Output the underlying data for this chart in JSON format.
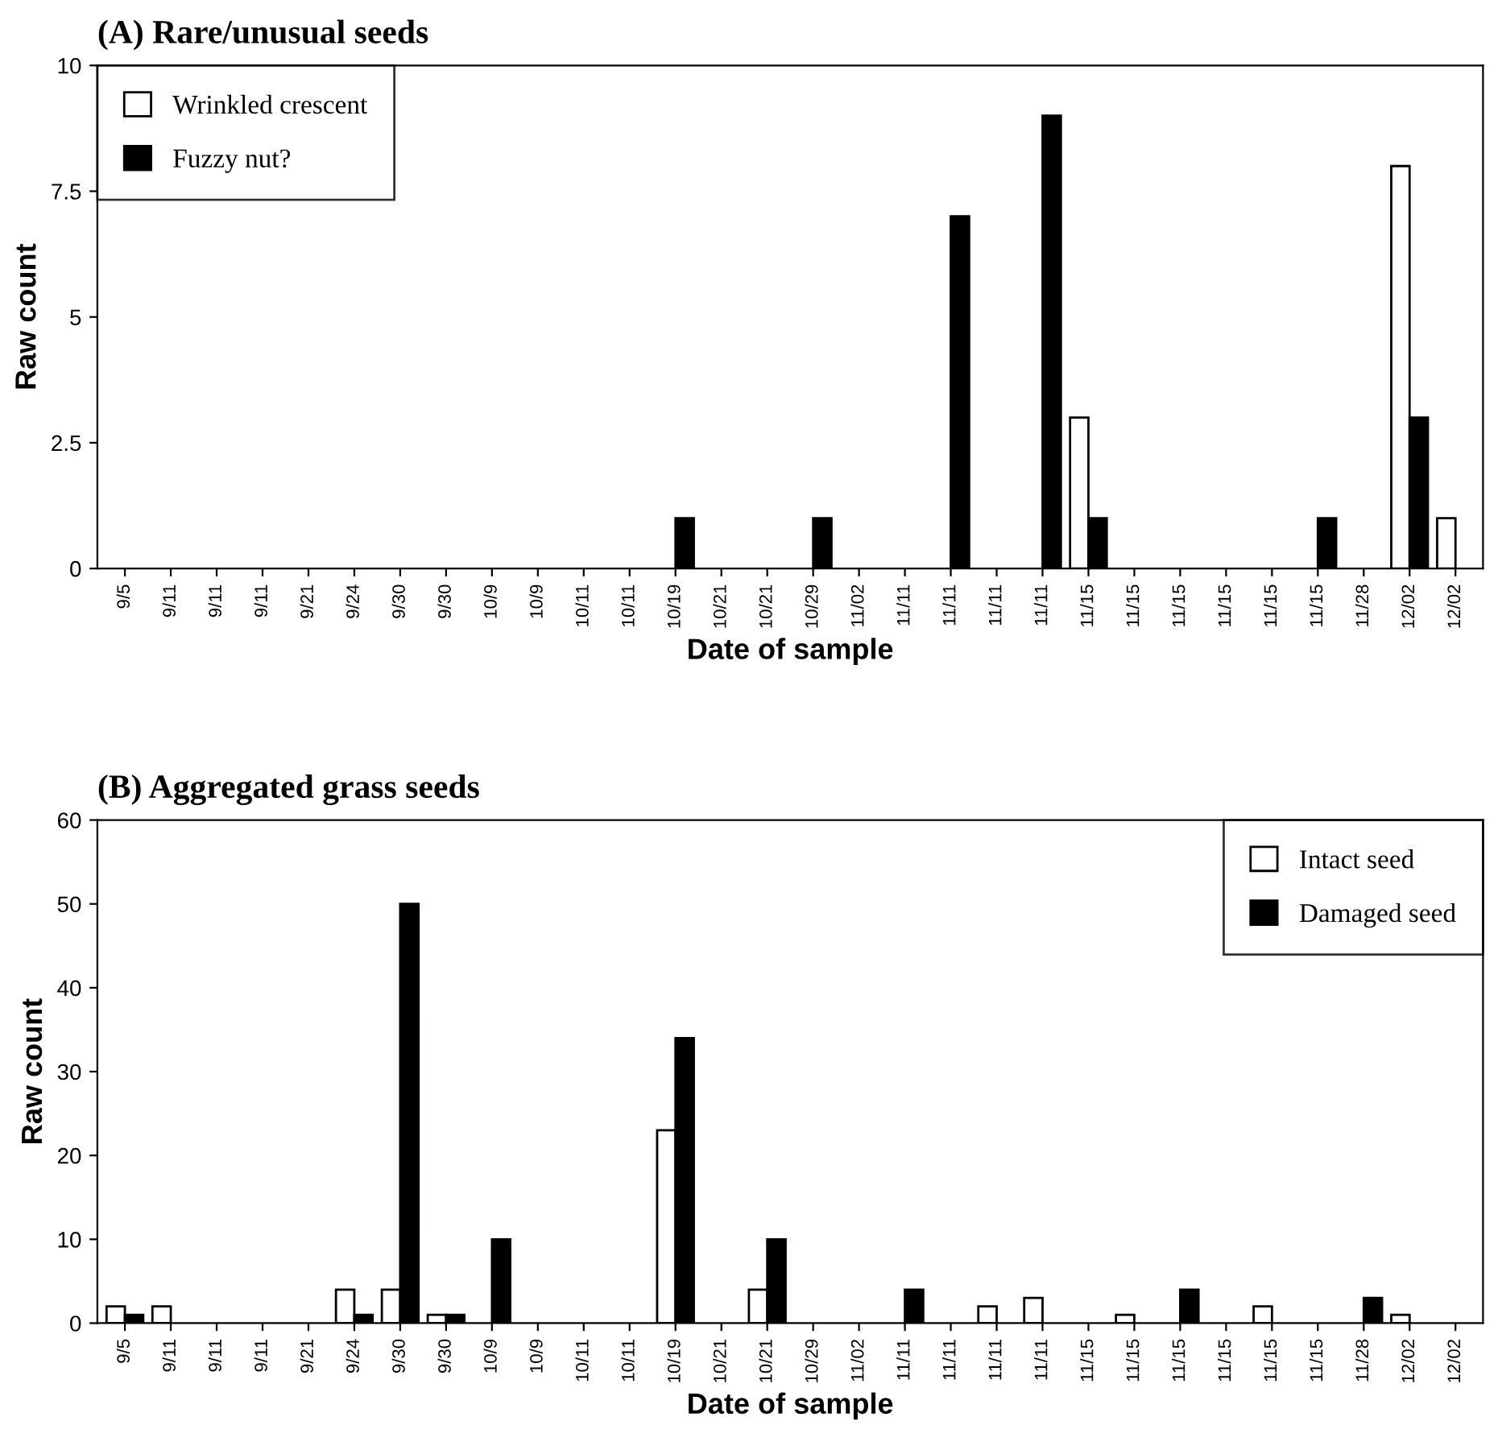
{
  "chart_data": [
    {
      "type": "bar",
      "title": "(A) Rare/unusual seeds",
      "xlabel": "Date of sample",
      "ylabel": "Raw count",
      "categories": [
        "9/5",
        "9/11",
        "9/11",
        "9/11",
        "9/21",
        "9/24",
        "9/30",
        "9/30",
        "10/9",
        "10/9",
        "10/11",
        "10/11",
        "10/19",
        "10/21",
        "10/21",
        "10/29",
        "11/02",
        "11/11",
        "11/11",
        "11/11",
        "11/11",
        "11/15",
        "11/15",
        "11/15",
        "11/15",
        "11/15",
        "11/15",
        "11/28",
        "12/02",
        "12/02"
      ],
      "series": [
        {
          "name": "Wrinkled crescent",
          "color": "#ffffff",
          "values": [
            null,
            null,
            null,
            null,
            null,
            null,
            null,
            null,
            null,
            null,
            null,
            null,
            null,
            null,
            null,
            null,
            null,
            null,
            null,
            null,
            null,
            3,
            null,
            null,
            null,
            null,
            null,
            null,
            8,
            1
          ]
        },
        {
          "name": "Fuzzy nut?",
          "color": "#000000",
          "values": [
            null,
            null,
            null,
            null,
            null,
            null,
            null,
            null,
            null,
            null,
            null,
            null,
            1,
            null,
            null,
            1,
            null,
            null,
            7,
            null,
            9,
            1,
            null,
            null,
            null,
            null,
            1,
            null,
            3,
            null
          ]
        }
      ],
      "ylim": [
        0,
        10
      ],
      "yticks": [
        0,
        2.5,
        5,
        7.5,
        10
      ],
      "grid": false,
      "legend": "top left"
    },
    {
      "type": "bar",
      "title": "(B) Aggregated grass seeds",
      "xlabel": "Date of sample",
      "ylabel": "Raw count",
      "categories": [
        "9/5",
        "9/11",
        "9/11",
        "9/11",
        "9/21",
        "9/24",
        "9/30",
        "9/30",
        "10/9",
        "10/9",
        "10/11",
        "10/11",
        "10/19",
        "10/21",
        "10/21",
        "10/29",
        "11/02",
        "11/11",
        "11/11",
        "11/11",
        "11/11",
        "11/15",
        "11/15",
        "11/15",
        "11/15",
        "11/15",
        "11/15",
        "11/28",
        "12/02",
        "12/02"
      ],
      "series": [
        {
          "name": "Intact seed",
          "color": "#ffffff",
          "values": [
            2,
            2,
            null,
            null,
            null,
            4,
            4,
            1,
            null,
            null,
            null,
            null,
            23,
            null,
            4,
            null,
            null,
            null,
            null,
            2,
            3,
            null,
            1,
            null,
            null,
            2,
            null,
            null,
            1,
            null
          ]
        },
        {
          "name": "Damaged seed",
          "color": "#000000",
          "values": [
            1,
            null,
            null,
            null,
            null,
            1,
            50,
            1,
            10,
            null,
            null,
            null,
            34,
            null,
            10,
            null,
            null,
            4,
            null,
            null,
            null,
            null,
            null,
            4,
            null,
            null,
            null,
            3,
            null,
            null
          ]
        }
      ],
      "ylim": [
        0,
        60
      ],
      "yticks": [
        0,
        10,
        20,
        30,
        40,
        50,
        60
      ],
      "grid": false,
      "legend": "top right"
    }
  ]
}
